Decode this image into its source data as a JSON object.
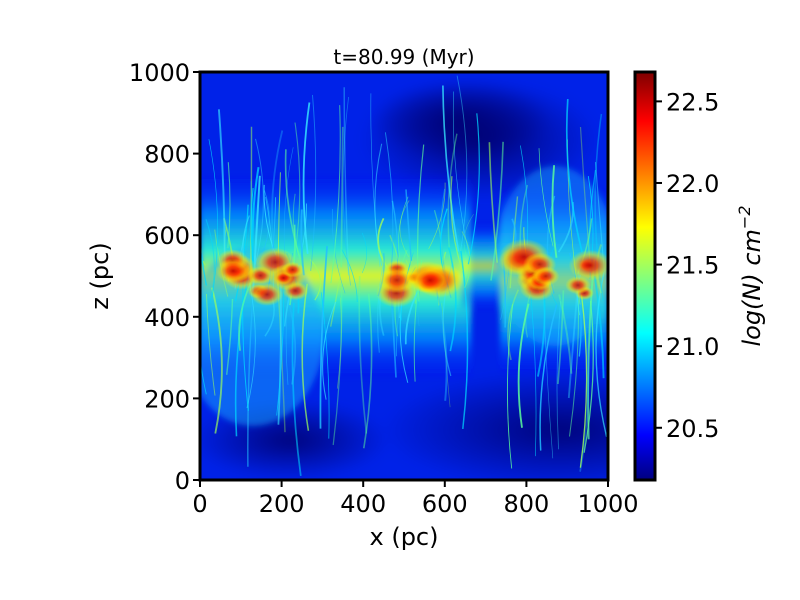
{
  "chart_data": {
    "type": "heatmap",
    "title": "t=80.99 (Myr)",
    "xlabel": "x (pc)",
    "ylabel": "z (pc)",
    "xlim": [
      0,
      1000
    ],
    "ylim": [
      0,
      1000
    ],
    "x_ticks": [
      0,
      200,
      400,
      600,
      800,
      1000
    ],
    "y_ticks": [
      0,
      200,
      400,
      600,
      800,
      1000
    ],
    "colormap": "jet",
    "colorbar": {
      "label": "log(N) cm",
      "label_exponent": "−2",
      "range": [
        20.18,
        22.68
      ],
      "ticks": [
        20.5,
        21.0,
        21.5,
        22.0,
        22.5
      ],
      "tick_labels": [
        "20.5",
        "21.0",
        "21.5",
        "22.0",
        "22.5"
      ]
    },
    "description_values": {
      "background_logN": 20.35,
      "midplane_z": 500,
      "dense_clumps_x": [
        80,
        160,
        220,
        500,
        580,
        800,
        850,
        950
      ],
      "dense_clumps_peak_logN": 22.6,
      "gap_x_range": [
        640,
        760
      ]
    }
  }
}
